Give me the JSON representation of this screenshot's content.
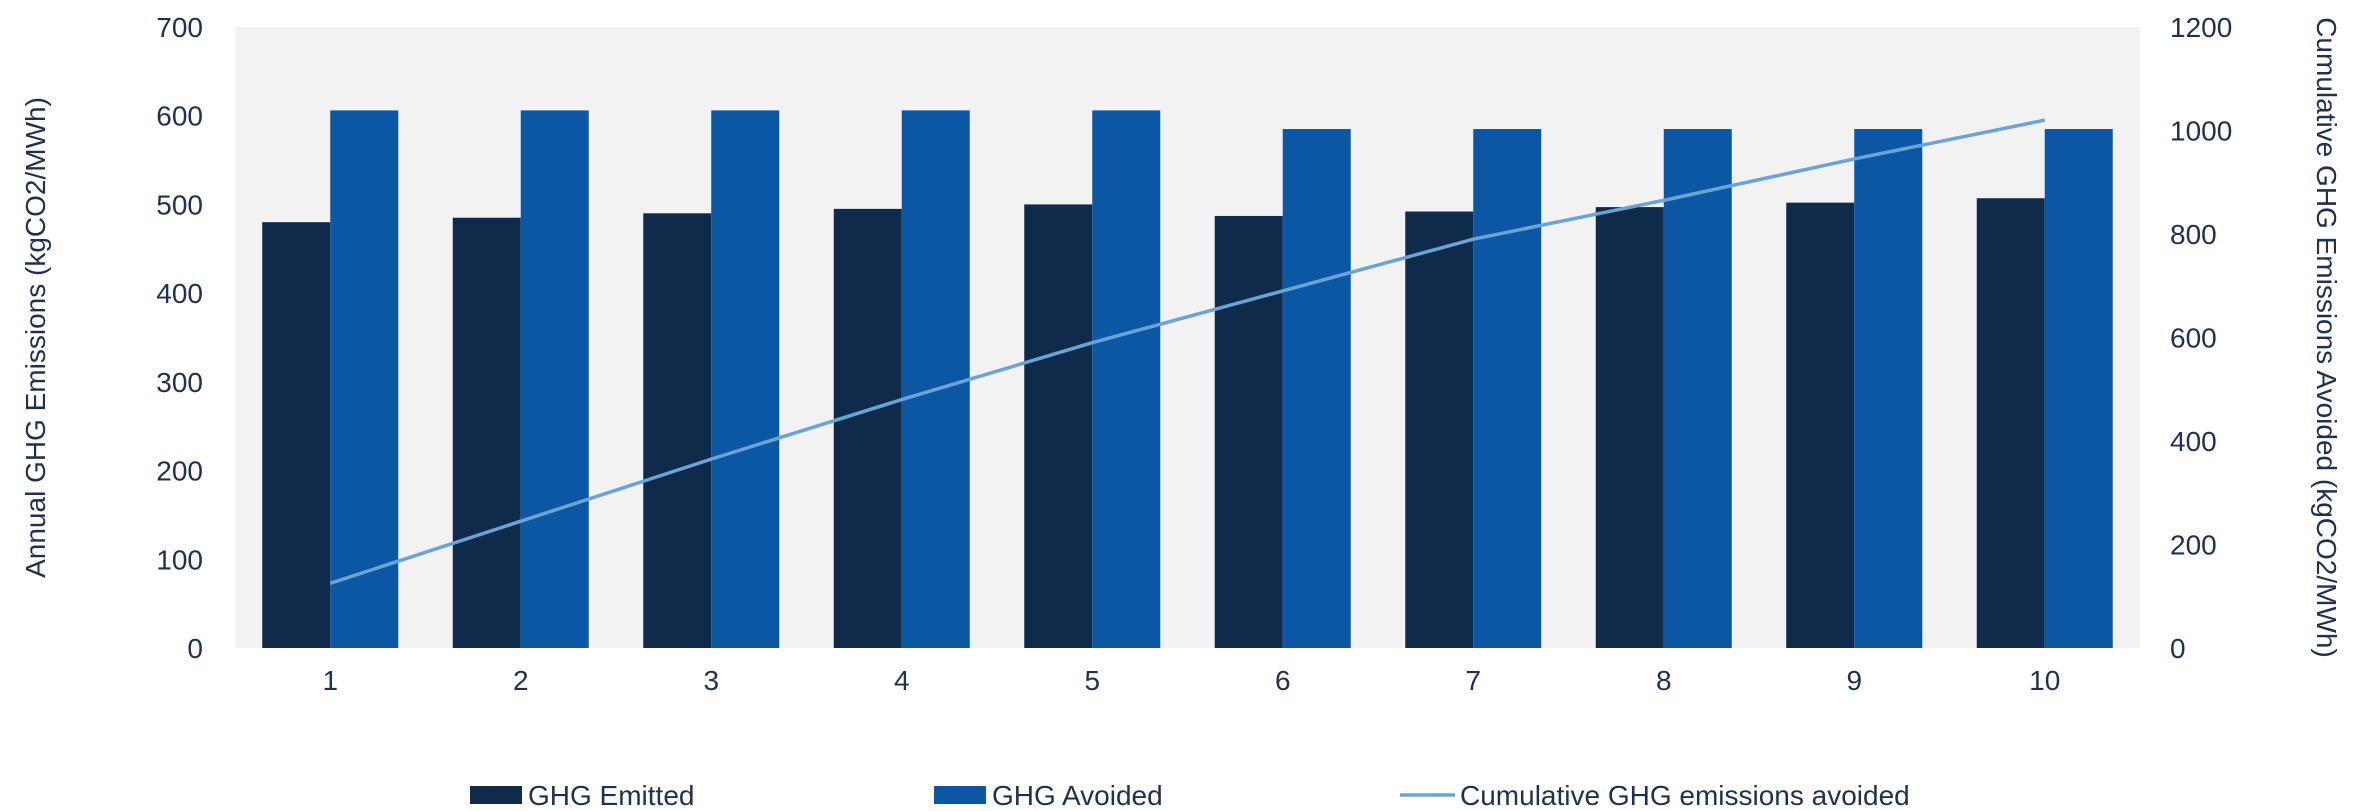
{
  "chart_data": {
    "type": "bar",
    "categories": [
      "1",
      "2",
      "3",
      "4",
      "5",
      "6",
      "7",
      "8",
      "9",
      "10"
    ],
    "series": [
      {
        "name": "GHG Emitted",
        "type": "bar",
        "axis": "left",
        "color": "#0f2a4a",
        "values": [
          480,
          485,
          490,
          495,
          500,
          487,
          492,
          497,
          502,
          507
        ]
      },
      {
        "name": "GHG Avoided",
        "type": "bar",
        "axis": "left",
        "color": "#0b57a4",
        "values": [
          606,
          606,
          606,
          606,
          606,
          585,
          585,
          585,
          585,
          585
        ]
      },
      {
        "name": "Cumulative GHG emissions avoided",
        "type": "line",
        "axis": "right",
        "color": "#6aa3d5",
        "values": [
          125,
          245,
          365,
          480,
          590,
          690,
          790,
          865,
          945,
          1020
        ]
      }
    ],
    "ylabel": "Annual GHG Emissions (kgCO2/MWh)",
    "ylabel_right": "Cumulative GHG Emissions Avoided  (kgCO2/MWh)",
    "ylim": [
      0,
      700
    ],
    "ylim_right": [
      0,
      1200
    ],
    "yticks": [
      0,
      100,
      200,
      300,
      400,
      500,
      600,
      700
    ],
    "yticks_right": [
      0,
      200,
      400,
      600,
      800,
      1000,
      1200
    ],
    "grid": false,
    "plot_background": "#f2f2f2",
    "legend_position": "bottom"
  }
}
